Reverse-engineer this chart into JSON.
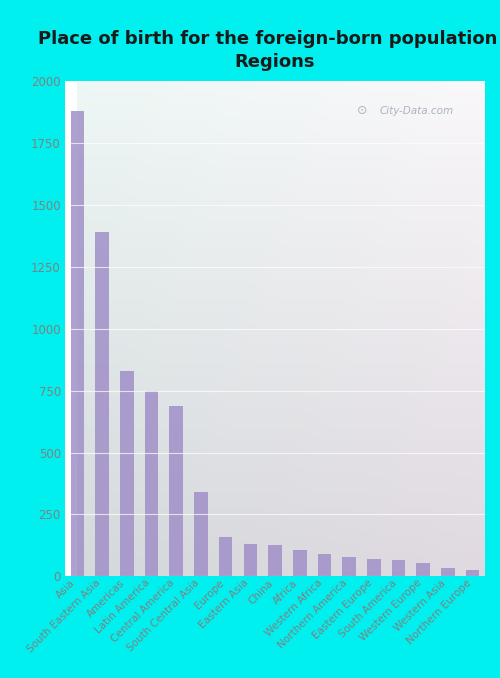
{
  "title": "Place of birth for the foreign-born population -\nRegions",
  "categories": [
    "Asia",
    "South Eastern Asia",
    "Americas",
    "Latin America",
    "Central America",
    "South Central Asia",
    "Europe",
    "Eastern Asia",
    "China",
    "Africa",
    "Western Africa",
    "Northern America",
    "Eastern Europe",
    "South America",
    "Western Europe",
    "Western Asia",
    "Northern Europe"
  ],
  "values": [
    1880,
    1390,
    830,
    750,
    690,
    340,
    160,
    130,
    125,
    105,
    90,
    80,
    70,
    65,
    55,
    35,
    25
  ],
  "bar_color": "#a090c8",
  "background_color": "#00f0f0",
  "title_color": "#1a1a1a",
  "tick_color": "#808080",
  "ylim": [
    0,
    2000
  ],
  "yticks": [
    0,
    250,
    500,
    750,
    1000,
    1250,
    1500,
    1750,
    2000
  ],
  "title_fontsize": 13,
  "watermark": "City-Data.com"
}
